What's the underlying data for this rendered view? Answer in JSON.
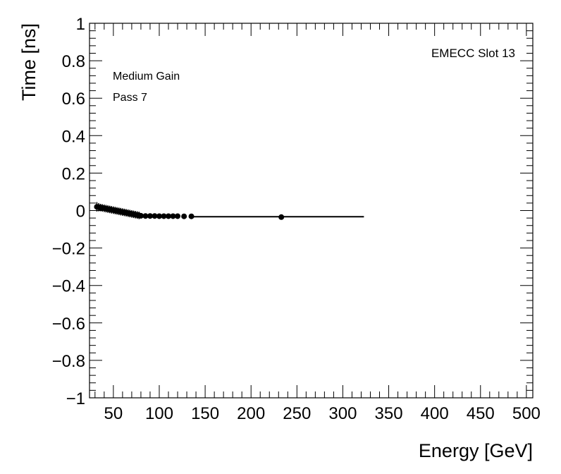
{
  "chart_data": {
    "type": "scatter",
    "xlabel": "Energy [GeV]",
    "ylabel": "Time [ns]",
    "xlim": [
      24,
      507
    ],
    "ylim": [
      -1,
      1
    ],
    "x_ticks": [
      50,
      100,
      150,
      200,
      250,
      300,
      350,
      400,
      450,
      500
    ],
    "x_tick_labels": [
      "50",
      "100",
      "150",
      "200",
      "250",
      "300",
      "350",
      "400",
      "450",
      "500"
    ],
    "y_ticks": [
      -1,
      -0.8,
      -0.6,
      -0.4,
      -0.2,
      0,
      0.2,
      0.4,
      0.6,
      0.8,
      1
    ],
    "y_tick_labels": [
      "−1",
      "−0.8",
      "−0.6",
      "−0.4",
      "−0.2",
      "0",
      "0.2",
      "0.4",
      "0.6",
      "0.8",
      "1"
    ],
    "annotations": {
      "top_right": "EMECC Slot 13",
      "line1": "Medium Gain",
      "line2": "Pass 7"
    },
    "grid": false,
    "series": [
      {
        "x": [
          32,
          34,
          36,
          38,
          40,
          42,
          44,
          46,
          48,
          50,
          52,
          54,
          56,
          58,
          60,
          62,
          64,
          66,
          68,
          70,
          72,
          74,
          76,
          78,
          80,
          85,
          90,
          95,
          100,
          105,
          110,
          115,
          120,
          127,
          135,
          233
        ],
        "y": [
          0.02,
          0.018,
          0.016,
          0.014,
          0.012,
          0.01,
          0.008,
          0.006,
          0.004,
          0.002,
          0.0,
          -0.002,
          -0.004,
          -0.006,
          -0.008,
          -0.01,
          -0.012,
          -0.014,
          -0.016,
          -0.018,
          -0.02,
          -0.022,
          -0.024,
          -0.026,
          -0.028,
          -0.029,
          -0.029,
          -0.029,
          -0.03,
          -0.03,
          -0.03,
          -0.03,
          -0.03,
          -0.031,
          -0.031,
          -0.035
        ],
        "yerr": [
          0.025,
          0.022,
          0.02,
          0.02,
          0.02,
          0.02,
          0.02,
          0.02,
          0.02,
          0.02,
          0.02,
          0.02,
          0.02,
          0.02,
          0.02,
          0.02,
          0.02,
          0.02,
          0.02,
          0.02,
          0.02,
          0.02,
          0.02,
          0.02,
          0.015,
          0.012,
          0.01,
          0.01,
          0.008,
          0.008,
          0.008,
          0.007,
          0.007,
          0.006,
          0.006,
          0.005
        ]
      }
    ],
    "fit_line": {
      "x": [
        135,
        323
      ],
      "y": [
        -0.033,
        -0.033
      ]
    }
  }
}
